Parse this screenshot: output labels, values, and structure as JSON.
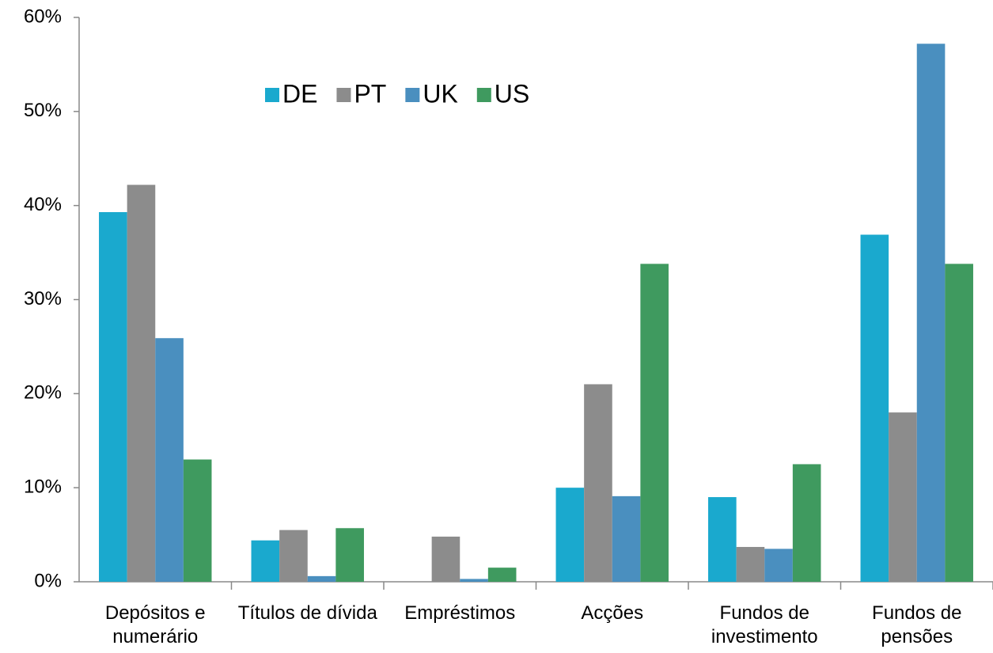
{
  "chart_data": {
    "type": "bar",
    "categories": [
      "Depósitos e numerário",
      "Títulos de dívida",
      "Empréstimos",
      "Acções",
      "Fundos de investimento",
      "Fundos de pensões"
    ],
    "series": [
      {
        "name": "DE",
        "color": "#1aa9ce",
        "values": [
          39.3,
          4.4,
          0,
          10.0,
          9.0,
          36.9
        ]
      },
      {
        "name": "PT",
        "color": "#8c8c8c",
        "values": [
          42.2,
          5.5,
          4.8,
          21.0,
          3.7,
          18.0
        ]
      },
      {
        "name": "UK",
        "color": "#4a8fbf",
        "values": [
          25.9,
          0.6,
          0.3,
          9.1,
          3.5,
          57.2
        ]
      },
      {
        "name": "US",
        "color": "#3f9a5f",
        "values": [
          13.0,
          5.7,
          1.5,
          33.8,
          12.5,
          33.8
        ]
      }
    ],
    "ylim": [
      0,
      60
    ],
    "yticks": [
      {
        "value": 0,
        "label": "0%"
      },
      {
        "value": 10,
        "label": "10%"
      },
      {
        "value": 20,
        "label": "20%"
      },
      {
        "value": 30,
        "label": "30%"
      },
      {
        "value": 40,
        "label": "40%"
      },
      {
        "value": 50,
        "label": "50%"
      },
      {
        "value": 60,
        "label": "60%"
      }
    ],
    "grid": false,
    "legend": "top"
  }
}
